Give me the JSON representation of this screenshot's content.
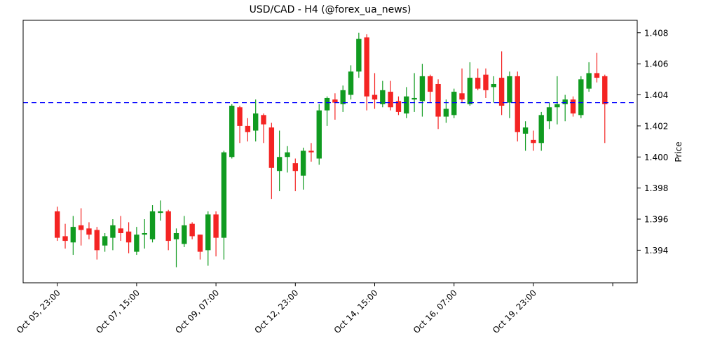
{
  "chart_data": {
    "type": "candlestick",
    "title": "USD/CAD - H4 (@forex_ua_news)",
    "ylabel": "Price",
    "ylabel_side": "right",
    "grid": false,
    "ylim": [
      1.3919,
      1.4088
    ],
    "y_ticks": [
      {
        "value": 1.394,
        "label": "1.394"
      },
      {
        "value": 1.396,
        "label": "1.396"
      },
      {
        "value": 1.398,
        "label": "1.398"
      },
      {
        "value": 1.4,
        "label": "1.400"
      },
      {
        "value": 1.402,
        "label": "1.402"
      },
      {
        "value": 1.404,
        "label": "1.404"
      },
      {
        "value": 1.406,
        "label": "1.406"
      },
      {
        "value": 1.408,
        "label": "1.408"
      }
    ],
    "x_ticks": [
      {
        "index": 0,
        "label": "Oct 05, 23:00"
      },
      {
        "index": 10,
        "label": "Oct 07, 15:00"
      },
      {
        "index": 20,
        "label": "Oct 09, 07:00"
      },
      {
        "index": 30,
        "label": "Oct 12, 23:00"
      },
      {
        "index": 40,
        "label": "Oct 14, 15:00"
      },
      {
        "index": 50,
        "label": "Oct 16, 07:00"
      },
      {
        "index": 60,
        "label": "Oct 19, 23:00"
      },
      {
        "index": 70,
        "label": ""
      }
    ],
    "hline": {
      "value": 1.4035,
      "color": "#0000ff",
      "style": "dashed"
    },
    "colors": {
      "up": "#109b20",
      "down": "#f42423",
      "background": "#ffffff",
      "axes": "#000000"
    },
    "candles_format": [
      "open",
      "high",
      "low",
      "close"
    ],
    "candles": [
      [
        1.3965,
        1.3968,
        1.3946,
        1.3948
      ],
      [
        1.3949,
        1.3957,
        1.3941,
        1.3946
      ],
      [
        1.3945,
        1.3962,
        1.3937,
        1.3955
      ],
      [
        1.3956,
        1.3967,
        1.3943,
        1.3953
      ],
      [
        1.3954,
        1.3958,
        1.3947,
        1.395
      ],
      [
        1.3953,
        1.3955,
        1.3934,
        1.394
      ],
      [
        1.3943,
        1.3951,
        1.3939,
        1.3949
      ],
      [
        1.3948,
        1.396,
        1.394,
        1.3956
      ],
      [
        1.3954,
        1.3962,
        1.3946,
        1.3951
      ],
      [
        1.3952,
        1.3958,
        1.3938,
        1.3945
      ],
      [
        1.3939,
        1.3955,
        1.3937,
        1.395
      ],
      [
        1.395,
        1.396,
        1.3941,
        1.3951
      ],
      [
        1.3947,
        1.3969,
        1.3945,
        1.3965
      ],
      [
        1.3964,
        1.3972,
        1.3959,
        1.3965
      ],
      [
        1.3965,
        1.3966,
        1.394,
        1.3946
      ],
      [
        1.3947,
        1.3954,
        1.3929,
        1.3951
      ],
      [
        1.3944,
        1.3962,
        1.3942,
        1.3956
      ],
      [
        1.3957,
        1.3958,
        1.3947,
        1.3949
      ],
      [
        1.395,
        1.395,
        1.3934,
        1.3939
      ],
      [
        1.394,
        1.3965,
        1.393,
        1.3963
      ],
      [
        1.3963,
        1.3965,
        1.3936,
        1.3948
      ],
      [
        1.3948,
        1.4004,
        1.3934,
        1.4003
      ],
      [
        1.4,
        1.4034,
        1.3999,
        1.4033
      ],
      [
        1.4032,
        1.4033,
        1.4009,
        1.402
      ],
      [
        1.402,
        1.4025,
        1.401,
        1.4016
      ],
      [
        1.4017,
        1.4037,
        1.401,
        1.4028
      ],
      [
        1.4027,
        1.4028,
        1.4009,
        1.4021
      ],
      [
        1.4019,
        1.4022,
        1.3973,
        1.3993
      ],
      [
        1.3991,
        1.4017,
        1.3978,
        1.4
      ],
      [
        1.4,
        1.4007,
        1.399,
        1.4003
      ],
      [
        1.3996,
        1.3999,
        1.3978,
        1.3991
      ],
      [
        1.3988,
        1.4006,
        1.3979,
        1.4004
      ],
      [
        1.4004,
        1.4009,
        1.3997,
        1.4003
      ],
      [
        1.3999,
        1.4034,
        1.3995,
        1.403
      ],
      [
        1.403,
        1.4039,
        1.402,
        1.4038
      ],
      [
        1.4037,
        1.4041,
        1.4024,
        1.4035
      ],
      [
        1.4034,
        1.4046,
        1.4029,
        1.4043
      ],
      [
        1.404,
        1.4059,
        1.4037,
        1.4055
      ],
      [
        1.4055,
        1.408,
        1.4051,
        1.4076
      ],
      [
        1.4077,
        1.4079,
        1.403,
        1.4039
      ],
      [
        1.404,
        1.4054,
        1.4031,
        1.4037
      ],
      [
        1.4034,
        1.4049,
        1.4032,
        1.4043
      ],
      [
        1.4042,
        1.4049,
        1.403,
        1.4032
      ],
      [
        1.4036,
        1.4039,
        1.4027,
        1.4029
      ],
      [
        1.4028,
        1.4045,
        1.4025,
        1.4039
      ],
      [
        1.4037,
        1.4054,
        1.4029,
        1.4038
      ],
      [
        1.4036,
        1.406,
        1.4026,
        1.4052
      ],
      [
        1.4052,
        1.4053,
        1.4035,
        1.4042
      ],
      [
        1.4047,
        1.405,
        1.4018,
        1.4026
      ],
      [
        1.4026,
        1.4037,
        1.4022,
        1.4031
      ],
      [
        1.4027,
        1.4044,
        1.4025,
        1.4042
      ],
      [
        1.4041,
        1.4057,
        1.4035,
        1.4037
      ],
      [
        1.4034,
        1.4061,
        1.4033,
        1.4051
      ],
      [
        1.4051,
        1.4057,
        1.4043,
        1.4044
      ],
      [
        1.4053,
        1.4057,
        1.4038,
        1.4043
      ],
      [
        1.4045,
        1.4052,
        1.4035,
        1.4047
      ],
      [
        1.4051,
        1.4068,
        1.4027,
        1.4033
      ],
      [
        1.4035,
        1.4055,
        1.4025,
        1.4052
      ],
      [
        1.4052,
        1.4055,
        1.401,
        1.4016
      ],
      [
        1.4015,
        1.4023,
        1.4004,
        1.4019
      ],
      [
        1.4011,
        1.4017,
        1.4004,
        1.4009
      ],
      [
        1.4009,
        1.4029,
        1.4004,
        1.4027
      ],
      [
        1.4023,
        1.4035,
        1.4018,
        1.4032
      ],
      [
        1.4032,
        1.4052,
        1.4021,
        1.4034
      ],
      [
        1.4034,
        1.404,
        1.4023,
        1.4037
      ],
      [
        1.4037,
        1.4039,
        1.4026,
        1.4028
      ],
      [
        1.4027,
        1.4052,
        1.4025,
        1.405
      ],
      [
        1.4044,
        1.4061,
        1.4042,
        1.4054
      ],
      [
        1.4054,
        1.4067,
        1.4048,
        1.4051
      ],
      [
        1.4052,
        1.4053,
        1.4009,
        1.4034
      ]
    ]
  }
}
